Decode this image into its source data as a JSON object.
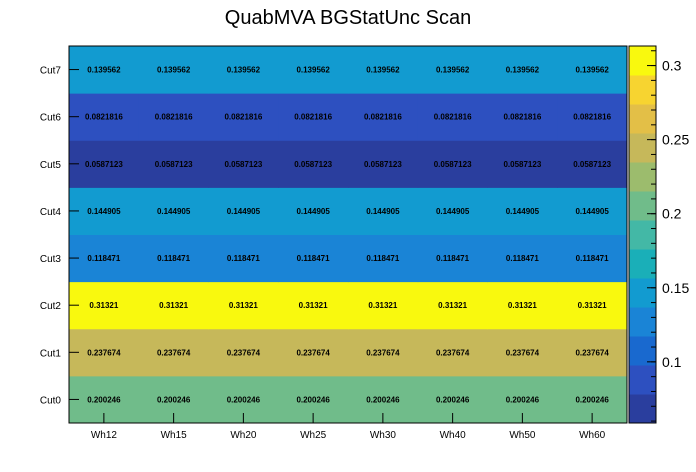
{
  "chart_data": {
    "type": "heatmap",
    "title": "QuabMVA BGStatUnc Scan",
    "x_categories": [
      "Wh12",
      "Wh15",
      "Wh20",
      "Wh25",
      "Wh30",
      "Wh40",
      "Wh50",
      "Wh60"
    ],
    "y_categories": [
      "Cut0",
      "Cut1",
      "Cut2",
      "Cut3",
      "Cut4",
      "Cut5",
      "Cut6",
      "Cut7"
    ],
    "rows": [
      {
        "y": "Cut0",
        "values": [
          0.200246,
          0.200246,
          0.200246,
          0.200246,
          0.200246,
          0.200246,
          0.200246,
          0.200246
        ],
        "labels": [
          "0.200246",
          "0.200246",
          "0.200246",
          "0.200246",
          "0.200246",
          "0.200246",
          "0.200246",
          "0.200246"
        ]
      },
      {
        "y": "Cut1",
        "values": [
          0.237674,
          0.237674,
          0.237674,
          0.237674,
          0.237674,
          0.237674,
          0.237674,
          0.237674
        ],
        "labels": [
          "0.237674",
          "0.237674",
          "0.237674",
          "0.237674",
          "0.237674",
          "0.237674",
          "0.237674",
          "0.237674"
        ]
      },
      {
        "y": "Cut2",
        "values": [
          0.31321,
          0.31321,
          0.31321,
          0.31321,
          0.31321,
          0.31321,
          0.31321,
          0.31321
        ],
        "labels": [
          "0.31321",
          "0.31321",
          "0.31321",
          "0.31321",
          "0.31321",
          "0.31321",
          "0.31321",
          "0.31321"
        ]
      },
      {
        "y": "Cut3",
        "values": [
          0.118471,
          0.118471,
          0.118471,
          0.118471,
          0.118471,
          0.118471,
          0.118471,
          0.118471
        ],
        "labels": [
          "0.118471",
          "0.118471",
          "0.118471",
          "0.118471",
          "0.118471",
          "0.118471",
          "0.118471",
          "0.118471"
        ]
      },
      {
        "y": "Cut4",
        "values": [
          0.144905,
          0.144905,
          0.144905,
          0.144905,
          0.144905,
          0.144905,
          0.144905,
          0.144905
        ],
        "labels": [
          "0.144905",
          "0.144905",
          "0.144905",
          "0.144905",
          "0.144905",
          "0.144905",
          "0.144905",
          "0.144905"
        ]
      },
      {
        "y": "Cut5",
        "values": [
          0.0587123,
          0.0587123,
          0.0587123,
          0.0587123,
          0.0587123,
          0.0587123,
          0.0587123,
          0.0587123
        ],
        "labels": [
          "0.0587123",
          "0.0587123",
          "0.0587123",
          "0.0587123",
          "0.0587123",
          "0.0587123",
          "0.0587123",
          "0.0587123"
        ]
      },
      {
        "y": "Cut6",
        "values": [
          0.0821816,
          0.0821816,
          0.0821816,
          0.0821816,
          0.0821816,
          0.0821816,
          0.0821816,
          0.0821816
        ],
        "labels": [
          "0.0821816",
          "0.0821816",
          "0.0821816",
          "0.0821816",
          "0.0821816",
          "0.0821816",
          "0.0821816",
          "0.0821816"
        ]
      },
      {
        "y": "Cut7",
        "values": [
          0.139562,
          0.139562,
          0.139562,
          0.139562,
          0.139562,
          0.139562,
          0.139562,
          0.139562
        ],
        "labels": [
          "0.139562",
          "0.139562",
          "0.139562",
          "0.139562",
          "0.139562",
          "0.139562",
          "0.139562",
          "0.139562"
        ]
      }
    ],
    "color_scale": {
      "range": [
        0.0587123,
        0.31321
      ],
      "ticks": [
        0.1,
        0.15,
        0.2,
        0.25,
        0.3
      ],
      "tick_labels": [
        "0.1",
        "0.15",
        "0.2",
        "0.25",
        "0.3"
      ],
      "colors": [
        "#2a3e9e",
        "#2d50c0",
        "#1969cf",
        "#1a84d6",
        "#129bd0",
        "#1aafb8",
        "#43b8a6",
        "#70bc8a",
        "#9cbc6d",
        "#c6b85a",
        "#e3bf47",
        "#f7d430",
        "#f9f90e"
      ]
    }
  }
}
